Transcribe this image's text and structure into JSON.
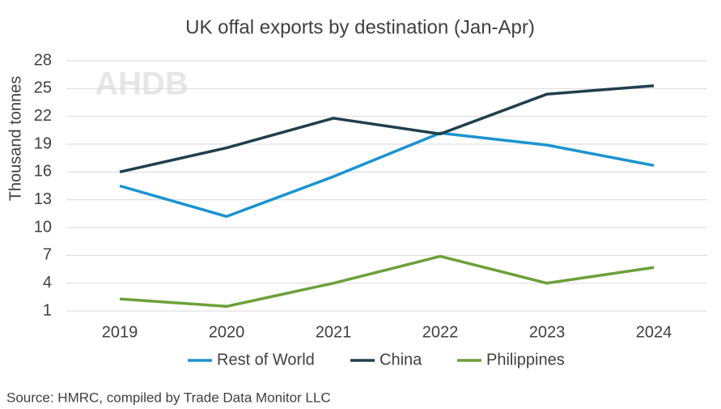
{
  "chart_data": {
    "type": "line",
    "title": "UK offal exports by destination (Jan-Apr)",
    "y_label": "Thousand tonnes",
    "source": "Source: HMRC, compiled by Trade Data Monitor LLC",
    "watermark": "AHDB",
    "categories": [
      "2019",
      "2020",
      "2021",
      "2022",
      "2023",
      "2024"
    ],
    "series": [
      {
        "name": "Rest of World",
        "color": "#1b93d0",
        "values": [
          14.5,
          11.2,
          15.5,
          20.2,
          18.9,
          16.7
        ]
      },
      {
        "name": "China",
        "color": "#213f4c",
        "values": [
          16.0,
          18.6,
          21.8,
          20.1,
          24.4,
          25.3
        ]
      },
      {
        "name": "Philippines",
        "color": "#6ca03a",
        "values": [
          2.3,
          1.5,
          4.0,
          6.9,
          4.0,
          5.7
        ]
      }
    ],
    "ylim": [
      1,
      28
    ],
    "yticks": [
      1,
      4,
      7,
      10,
      13,
      16,
      19,
      22,
      25,
      28
    ],
    "grid": true,
    "legend": "bottom"
  }
}
